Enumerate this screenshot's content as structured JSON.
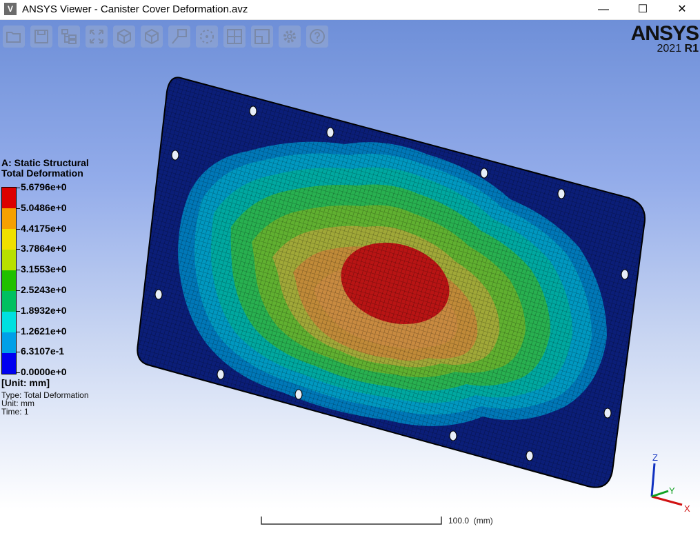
{
  "window": {
    "title": "ANSYS Viewer - Canister Cover Deformation.avz",
    "icon_letter": "V",
    "controls": {
      "minimize": "—",
      "maximize": "☐",
      "close": "✕"
    }
  },
  "toolbar": {
    "buttons": [
      {
        "name": "open-button",
        "icon": "folder-open-icon"
      },
      {
        "name": "save-button",
        "icon": "save-icon"
      },
      {
        "name": "tree-button",
        "icon": "tree-icon"
      },
      {
        "name": "zoom-fit-button",
        "icon": "zoom-fit-icon"
      },
      {
        "name": "iso-view-button",
        "icon": "cube-iso-icon"
      },
      {
        "name": "cube-view-button",
        "icon": "cube-icon"
      },
      {
        "name": "annotate-button",
        "icon": "annotation-icon"
      },
      {
        "name": "rotate-button",
        "icon": "rotate-icon"
      },
      {
        "name": "viewports-button",
        "icon": "viewports-icon"
      },
      {
        "name": "window-button",
        "icon": "window-icon"
      },
      {
        "name": "settings-button",
        "icon": "gear-icon"
      },
      {
        "name": "help-button",
        "icon": "help-icon"
      }
    ]
  },
  "logo": {
    "brand": "ANSYS",
    "version": "2021",
    "release": "R1"
  },
  "legend": {
    "title_line1": "A: Static Structural",
    "title_line2": "Total Deformation",
    "values": [
      "5.6796e+0",
      "5.0486e+0",
      "4.4175e+0",
      "3.7864e+0",
      "3.1553e+0",
      "2.5243e+0",
      "1.8932e+0",
      "1.2621e+0",
      "6.3107e-1",
      "0.0000e+0"
    ],
    "colors": [
      "#dc0000",
      "#f5a000",
      "#f0e000",
      "#b8e000",
      "#20c000",
      "#00c060",
      "#00e0e0",
      "#00a0e8",
      "#0000f0"
    ],
    "unit": "[Unit: mm]",
    "type_line": "Type: Total Deformation",
    "unit_line": "Unit: mm",
    "time_line": "Time: 1"
  },
  "scale_bar": {
    "label": "100.0",
    "unit": "(mm)"
  },
  "triad": {
    "x": "X",
    "y": "Y",
    "z": "Z"
  }
}
